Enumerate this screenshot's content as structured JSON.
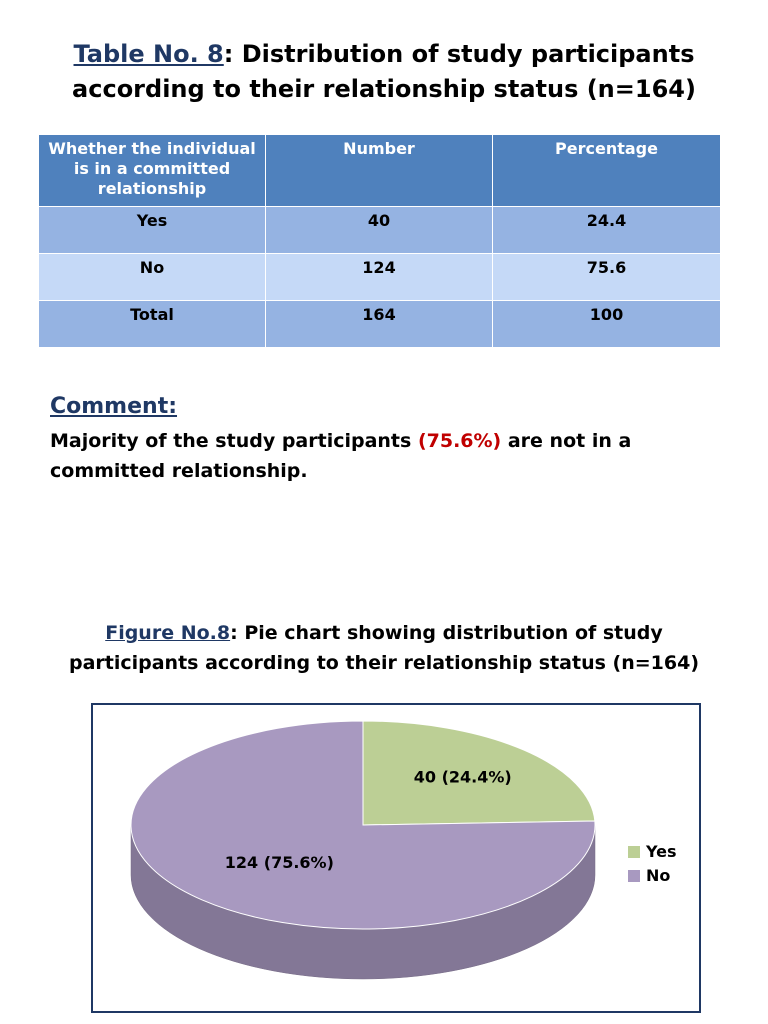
{
  "table_title": {
    "ref": "Table No. 8",
    "line1_rest": ": Distribution of study participants",
    "line2": "according to their relationship status (n=164)"
  },
  "table": {
    "headers": [
      "Whether the individual is in a committed relationship",
      "Number",
      "Percentage"
    ],
    "rows": [
      [
        "Yes",
        "40",
        "24.4"
      ],
      [
        "No",
        "124",
        "75.6"
      ],
      [
        "Total",
        "164",
        "100"
      ]
    ]
  },
  "comment": {
    "heading": "Comment:",
    "before": "Majority of the study participants ",
    "highlight": "(75.6%)",
    "after": " are not in a committed relationship."
  },
  "figure_title": {
    "ref": "Figure No.8",
    "line1_rest": ": Pie chart showing distribution of study",
    "line2": "participants according to their relationship status (n=164)"
  },
  "colors": {
    "header_blue": "#4f81bd",
    "row_dark": "#95b3e2",
    "row_light": "#c5d9f7",
    "highlight_red": "#c00000",
    "title_navy": "#1f3864",
    "yes_green": "#bccf95",
    "no_purple": "#a899c0"
  },
  "chart_data": {
    "type": "pie",
    "title": "",
    "slices": [
      {
        "label": "Yes",
        "value": 40,
        "percent": 24.4,
        "data_label": "40 (24.4%)",
        "color": "#bccf95"
      },
      {
        "label": "No",
        "value": 124,
        "percent": 75.6,
        "data_label": "124 (75.6%)",
        "color": "#a899c0"
      }
    ],
    "legend": [
      "Yes",
      "No"
    ],
    "legend_position": "right",
    "style": "3d"
  }
}
